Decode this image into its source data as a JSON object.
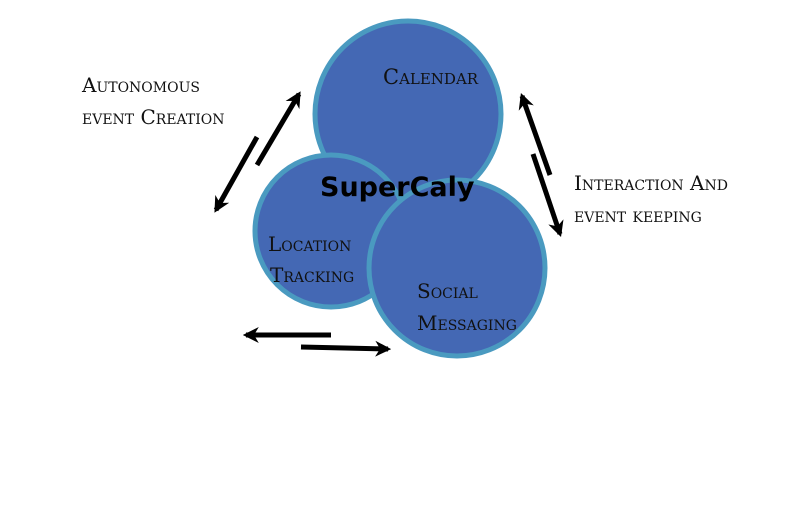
{
  "colors": {
    "circle_fill": "#4468B4",
    "circle_stroke": "#4A9AC0",
    "arrow": "#000000",
    "text": "#111111"
  },
  "diagram": {
    "center_title": "SuperCaly",
    "nodes": {
      "calendar": "Calendar",
      "location_line1": "Location",
      "location_line2": "Tracking",
      "social_line1": "Social",
      "social_line2": "Messaging"
    },
    "annotations": {
      "left_line1": "Autonomous",
      "left_line2": "event Creation",
      "right_line1": "Interaction And",
      "right_line2": "event keeping"
    }
  }
}
